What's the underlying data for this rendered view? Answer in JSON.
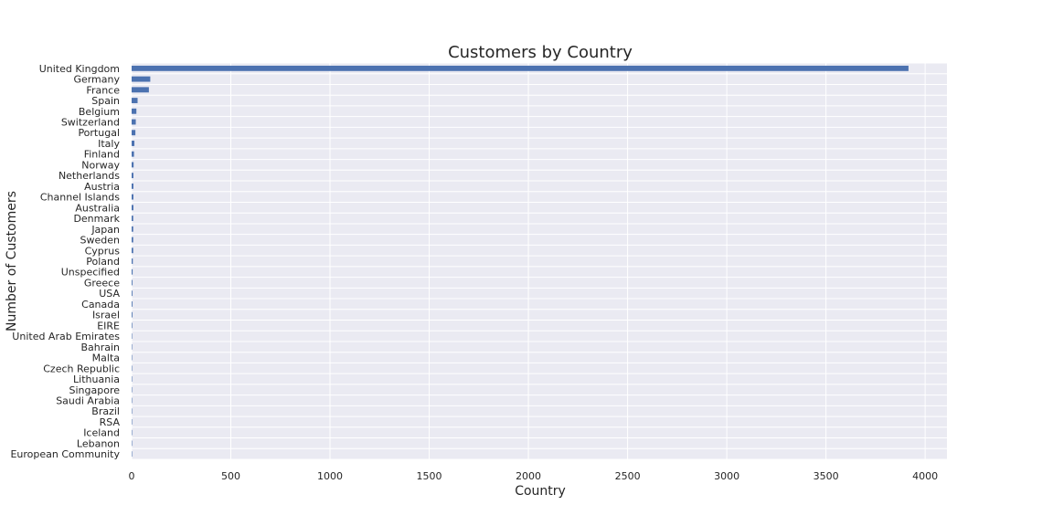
{
  "chart_data": {
    "type": "bar",
    "orientation": "horizontal",
    "title": "Customers by Country",
    "xlabel": "Country",
    "ylabel": "Number of Customers",
    "xlim": [
      0,
      4110
    ],
    "xticks": [
      "0",
      "500",
      "1000",
      "1500",
      "2000",
      "2500",
      "3000",
      "3500",
      "4000"
    ],
    "grid": true,
    "legend": "none",
    "categories": [
      "United Kingdom",
      "Germany",
      "France",
      "Spain",
      "Belgium",
      "Switzerland",
      "Portugal",
      "Italy",
      "Finland",
      "Norway",
      "Netherlands",
      "Austria",
      "Channel Islands",
      "Australia",
      "Denmark",
      "Japan",
      "Sweden",
      "Cyprus",
      "Poland",
      "Unspecified",
      "Greece",
      "USA",
      "Canada",
      "Israel",
      "EIRE",
      "United Arab Emirates",
      "Bahrain",
      "Malta",
      "Czech Republic",
      "Lithuania",
      "Singapore",
      "Saudi Arabia",
      "Brazil",
      "RSA",
      "Iceland",
      "Lebanon",
      "European Community"
    ],
    "values": [
      3916,
      94,
      87,
      30,
      24,
      21,
      19,
      14,
      12,
      10,
      9,
      9,
      9,
      9,
      8,
      8,
      8,
      8,
      6,
      5,
      4,
      4,
      4,
      4,
      3,
      2,
      2,
      2,
      1,
      1,
      1,
      1,
      1,
      1,
      1,
      1,
      1
    ],
    "colors": {
      "bar": "#4c72b0",
      "plot_background": "#eaeaf2",
      "grid": "#ffffff",
      "text": "#262626"
    }
  }
}
